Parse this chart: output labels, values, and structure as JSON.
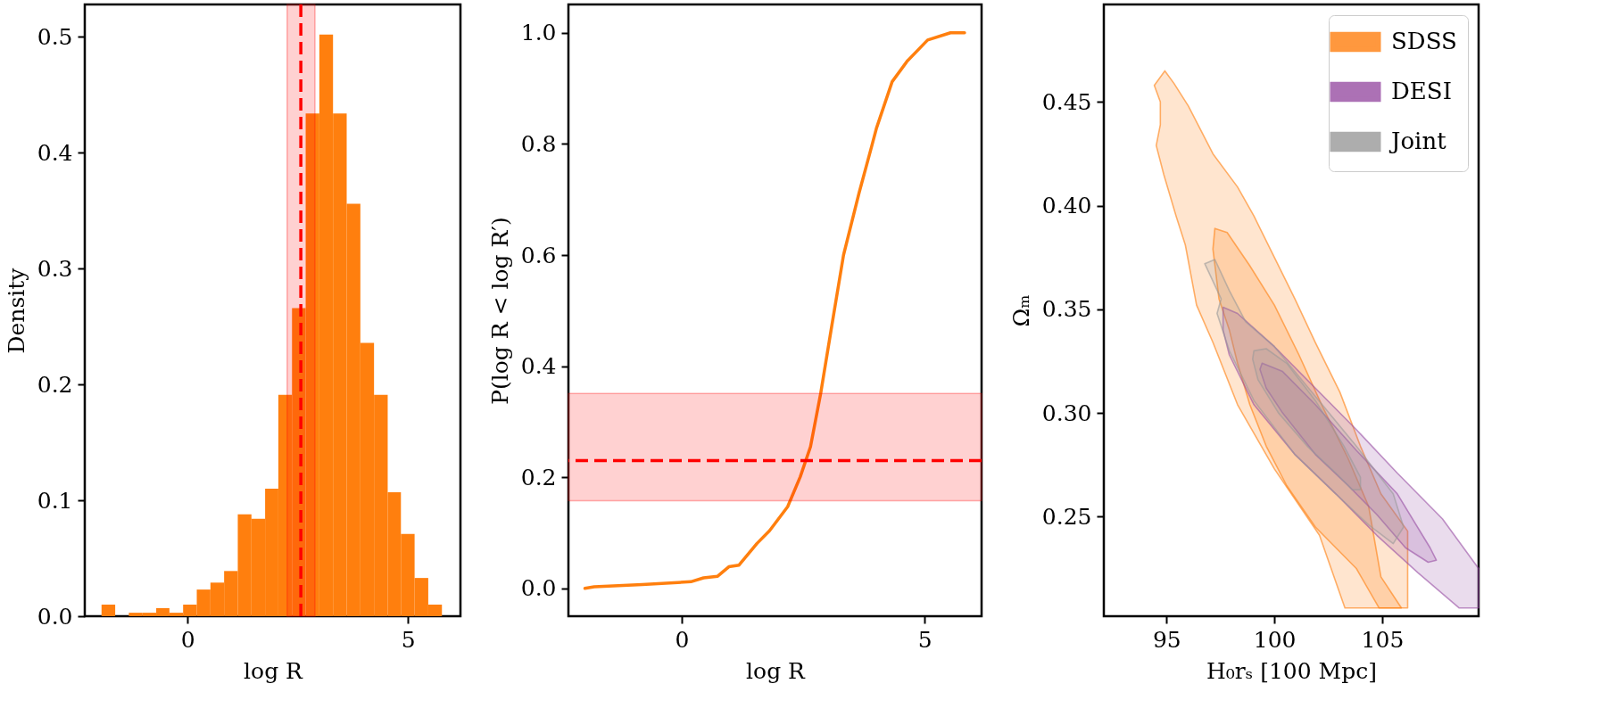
{
  "chart_data": [
    {
      "type": "histogram",
      "xlabel": "log R",
      "ylabel": "Density",
      "color": "#ff7f0e",
      "bins": [
        -1.95,
        -1.64,
        -1.33,
        -1.02,
        -0.71,
        -0.41,
        -0.1,
        0.21,
        0.52,
        0.83,
        1.14,
        1.45,
        1.76,
        2.06,
        2.37,
        2.68,
        2.99,
        3.3,
        3.61,
        3.92,
        4.23,
        4.54,
        4.84,
        5.15,
        5.46,
        5.77
      ],
      "values": [
        0.01,
        0,
        0.003,
        0.003,
        0.007,
        0.003,
        0.01,
        0.023,
        0.029,
        0.039,
        0.088,
        0.084,
        0.11,
        0.191,
        0.266,
        0.434,
        0.502,
        0.434,
        0.356,
        0.236,
        0.191,
        0.107,
        0.071,
        0.033,
        0.01
      ],
      "xlim": [
        -2.33,
        6.19
      ],
      "ylim": [
        0,
        0.528
      ],
      "xticks": [
        0,
        5
      ],
      "yticks": [
        {
          "value": 0,
          "label": "0.0"
        },
        0.1,
        0.2,
        0.3,
        0.4,
        0.5
      ],
      "ref_lines": [
        {
          "axis": "x",
          "value": 2.57,
          "color": "#ff0000",
          "line_style": "dashed"
        }
      ],
      "bands": [
        {
          "axis": "x",
          "from": 2.26,
          "to": 2.89,
          "color": "#ff0000"
        }
      ]
    },
    {
      "type": "line",
      "xlabel": "log R",
      "ylabel": "P(log R < log R′)",
      "series": [
        {
          "color": "#ff7f0e",
          "x": [
            -1.99,
            -1.8,
            -0.81,
            0.19,
            0.45,
            0.74,
            0.97,
            1.18,
            1.55,
            1.81,
            2.18,
            2.44,
            2.65,
            2.86,
            3.07,
            3.33,
            3.65,
            3.91,
            4.01,
            4.33,
            4.64,
            5.06,
            5.53,
            5.82
          ],
          "values": [
            0.0,
            0.003,
            0.007,
            0.012,
            0.019,
            0.022,
            0.039,
            0.042,
            0.081,
            0.104,
            0.147,
            0.201,
            0.255,
            0.351,
            0.463,
            0.6,
            0.712,
            0.796,
            0.829,
            0.912,
            0.949,
            0.987,
            1.0,
            1.0
          ]
        }
      ],
      "xlim": [
        -2.33,
        6.17
      ],
      "ylim": [
        -0.05,
        1.051
      ],
      "xticks": [
        0,
        5
      ],
      "yticks": [
        {
          "value": 0,
          "label": "0.0"
        },
        0.2,
        0.4,
        0.6,
        0.8,
        {
          "value": 1,
          "label": "1.0"
        }
      ],
      "ref_lines": [
        {
          "axis": "y",
          "value": 0.23,
          "color": "#ff0000",
          "line_style": "dashed"
        }
      ],
      "bands": [
        {
          "axis": "y",
          "from": 0.158,
          "to": 0.351,
          "color": "#ff0000"
        }
      ]
    },
    {
      "type": "area",
      "xlabel": "H₀rₛ [100 Mpc]",
      "ylabel": "Ωₘ",
      "legend": "top right",
      "xlim": [
        92.09,
        109.47
      ],
      "ylim": [
        0.202,
        0.497
      ],
      "xticks": [
        95,
        100,
        105
      ],
      "yticks": [
        0.25,
        {
          "value": 0.3,
          "label": "0.30"
        },
        0.35,
        {
          "value": 0.4,
          "label": "0.40"
        },
        0.45
      ],
      "series": [
        {
          "name": "SDSS",
          "type": "area",
          "color": "#ff7f0e",
          "x": [
            94.92,
            95.34,
            96.01,
            97.15,
            98.29,
            99.05,
            100.0,
            100.95,
            101.9,
            103.04,
            103.99,
            104.94,
            106.18,
            106.18,
            103.27,
            102.09,
            100.0,
            98.29,
            97.15,
            96.39,
            95.87,
            95.44,
            94.87,
            94.52,
            94.71,
            94.71,
            94.43
          ],
          "values": [
            0.465,
            0.459,
            0.448,
            0.425,
            0.409,
            0.395,
            0.375,
            0.355,
            0.334,
            0.31,
            0.284,
            0.261,
            0.243,
            0.206,
            0.206,
            0.241,
            0.273,
            0.304,
            0.334,
            0.352,
            0.381,
            0.395,
            0.415,
            0.429,
            0.439,
            0.45,
            0.458
          ]
        },
        {
          "type": "area",
          "color": "#ff7f0e",
          "x": [
            97.24,
            97.81,
            98.86,
            100.0,
            101.14,
            102.28,
            103.42,
            104.37,
            104.94,
            105.89,
            104.85,
            103.8,
            101.9,
            100.57,
            99.62,
            98.86,
            98.29,
            97.91,
            97.43,
            97.15
          ],
          "values": [
            0.389,
            0.387,
            0.371,
            0.352,
            0.328,
            0.302,
            0.278,
            0.255,
            0.221,
            0.206,
            0.206,
            0.225,
            0.245,
            0.265,
            0.284,
            0.304,
            0.324,
            0.34,
            0.355,
            0.379
          ]
        },
        {
          "name": "DESI",
          "type": "area",
          "color": "#984ea3",
          "x": [
            97.62,
            98.29,
            100.0,
            101.9,
            103.8,
            105.7,
            107.79,
            109.47,
            109.47,
            108.56,
            106.65,
            104.75,
            102.85,
            100.95,
            99.05,
            97.91,
            97.62
          ],
          "values": [
            0.351,
            0.348,
            0.332,
            0.312,
            0.292,
            0.271,
            0.249,
            0.225,
            0.206,
            0.206,
            0.223,
            0.241,
            0.261,
            0.28,
            0.304,
            0.328,
            0.34
          ]
        },
        {
          "type": "area",
          "color": "#984ea3",
          "x": [
            99.43,
            100.38,
            101.9,
            103.8,
            105.7,
            107.22,
            107.51,
            107.13,
            106.08,
            104.75,
            103.42,
            101.9,
            100.38,
            99.62,
            99.33
          ],
          "values": [
            0.324,
            0.32,
            0.304,
            0.282,
            0.261,
            0.235,
            0.229,
            0.228,
            0.235,
            0.251,
            0.265,
            0.28,
            0.3,
            0.312,
            0.321
          ]
        },
        {
          "name": "Joint",
          "type": "area",
          "color": "#999999",
          "x": [
            96.77,
            97.24,
            97.91,
            98.67,
            100.0,
            101.9,
            103.8,
            105.51,
            105.99,
            105.51,
            104.37,
            102.85,
            100.95,
            99.05,
            97.91,
            97.34,
            97.53
          ],
          "values": [
            0.372,
            0.374,
            0.359,
            0.344,
            0.332,
            0.308,
            0.284,
            0.261,
            0.245,
            0.237,
            0.246,
            0.261,
            0.28,
            0.306,
            0.33,
            0.348,
            0.355
          ]
        },
        {
          "type": "area",
          "color": "#999999",
          "x": [
            99.05,
            99.62,
            100.57,
            101.9,
            103.23,
            103.99,
            103.99,
            103.61,
            102.85,
            101.52,
            100.19,
            99.24,
            98.99
          ],
          "values": [
            0.33,
            0.331,
            0.324,
            0.306,
            0.284,
            0.269,
            0.263,
            0.263,
            0.271,
            0.284,
            0.3,
            0.316,
            0.326
          ]
        }
      ]
    }
  ]
}
